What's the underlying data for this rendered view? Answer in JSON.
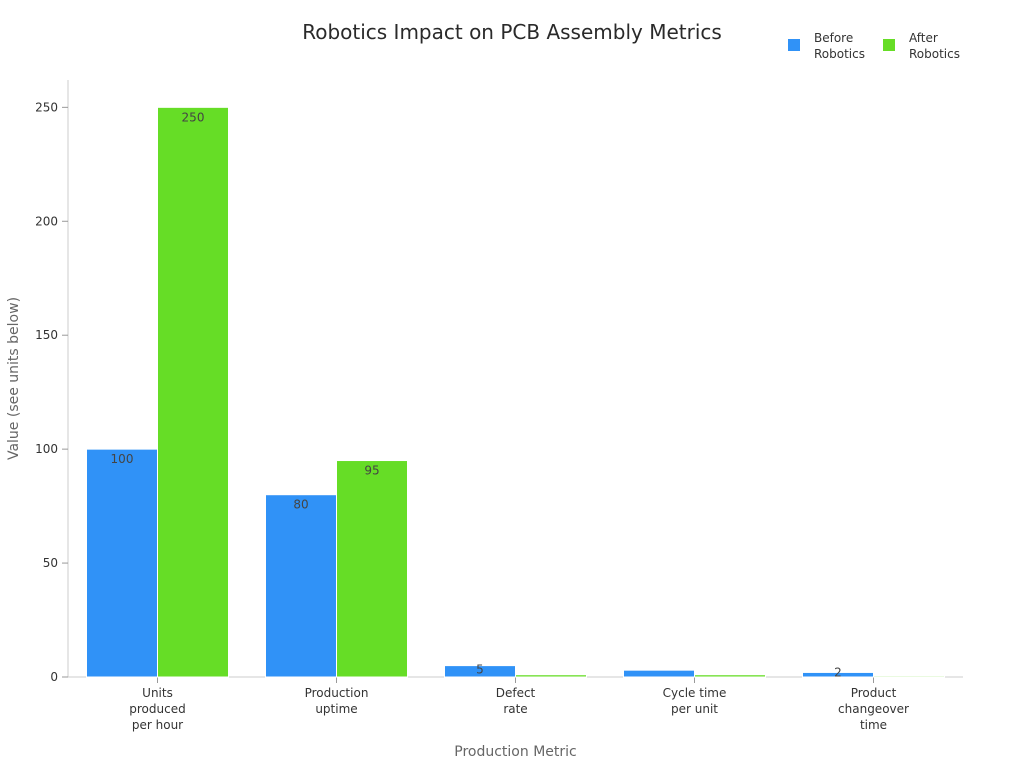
{
  "chart_data": {
    "type": "bar",
    "title": "Robotics Impact on PCB Assembly Metrics",
    "xlabel": "Production Metric",
    "ylabel": "Value (see units below)",
    "categories": [
      [
        "Units",
        "produced",
        "per hour"
      ],
      [
        "Production",
        "uptime"
      ],
      [
        "Defect",
        "rate"
      ],
      [
        "Cycle time",
        "per unit"
      ],
      [
        "Product",
        "changeover",
        "time"
      ]
    ],
    "series": [
      {
        "name": [
          "Before",
          "Robotics"
        ],
        "color": "#3092F7",
        "values": [
          100,
          80,
          5,
          3,
          2
        ],
        "labels": [
          "100",
          "80",
          "5",
          "",
          "2"
        ]
      },
      {
        "name": [
          "After",
          "Robotics"
        ],
        "color": "#66DD26",
        "values": [
          250,
          95,
          1,
          1,
          0.5
        ],
        "labels": [
          "250",
          "95",
          "",
          "",
          ""
        ]
      }
    ],
    "ylim": [
      0,
      262
    ],
    "yticks": [
      0,
      50,
      100,
      150,
      200,
      250
    ],
    "grid": false,
    "legend_position": "top-right"
  }
}
